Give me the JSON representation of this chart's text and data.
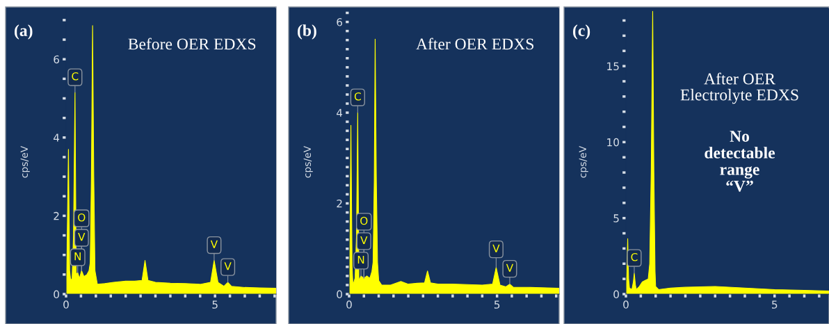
{
  "chart_data": [
    {
      "type": "area",
      "title": "(a)",
      "ylabel": "cps/eV",
      "x": [
        0,
        0.04,
        0.08,
        0.12,
        0.15,
        0.2,
        0.25,
        0.3,
        0.34,
        0.39,
        0.45,
        0.52,
        0.6,
        0.7,
        0.77,
        0.81,
        0.85,
        0.89,
        0.93,
        0.97,
        1.05,
        1.3,
        1.6,
        2.0,
        2.3,
        2.55,
        2.65,
        2.75,
        3.0,
        3.5,
        4.0,
        4.5,
        4.85,
        4.97,
        5.1,
        5.3,
        5.43,
        5.55,
        6.0,
        6.5,
        7.05
      ],
      "series": [
        {
          "color": "#ffff00",
          "values": [
            0,
            1.5,
            3.7,
            0.6,
            0.4,
            0.35,
            1.5,
            5.15,
            0.5,
            0.55,
            0.4,
            0.6,
            0.45,
            0.5,
            0.6,
            0.8,
            3.0,
            6.86,
            3.0,
            0.6,
            0.25,
            0.27,
            0.3,
            0.33,
            0.33,
            0.35,
            0.86,
            0.35,
            0.3,
            0.28,
            0.27,
            0.25,
            0.3,
            0.86,
            0.3,
            0.2,
            0.3,
            0.2,
            0.17,
            0.16,
            0.15
          ]
        }
      ],
      "xlim": [
        0,
        7.05
      ],
      "ylim": [
        0,
        7.3
      ],
      "xticks": [
        0,
        {
          "value": 0.5,
          "label": null
        },
        {
          "value": 1,
          "label": null
        },
        {
          "value": 1.5,
          "label": null
        },
        {
          "value": 2,
          "label": null
        },
        {
          "value": 2.5,
          "label": null
        },
        {
          "value": 3,
          "label": null
        },
        {
          "value": 3.5,
          "label": null
        },
        {
          "value": 4,
          "label": null
        },
        {
          "value": 4.5,
          "label": null
        },
        5,
        {
          "value": 5.5,
          "label": null
        },
        {
          "value": 6,
          "label": null
        },
        {
          "value": 6.5,
          "label": null
        },
        {
          "value": 7,
          "label": null
        }
      ],
      "yticks": [
        0,
        {
          "value": 0.5,
          "label": null
        },
        {
          "value": 1,
          "label": null
        },
        {
          "value": 1.5,
          "label": null
        },
        2,
        {
          "value": 2.5,
          "label": null
        },
        {
          "value": 3,
          "label": null
        },
        {
          "value": 3.5,
          "label": null
        },
        4,
        {
          "value": 4.5,
          "label": null
        },
        {
          "value": 5,
          "label": null
        },
        {
          "value": 5.5,
          "label": null
        },
        6,
        {
          "value": 6.5,
          "label": null
        },
        {
          "value": 7,
          "label": null
        }
      ],
      "annotations": [
        "Before OER EDXS",
        {
          "text": "C",
          "x": 0.3,
          "y": 5.15
        },
        {
          "text": "O",
          "x": 0.52,
          "y": 0.6
        },
        {
          "text": "V",
          "x": 0.52,
          "y": 0.6
        },
        {
          "text": "N",
          "x": 0.39,
          "y": 0.55
        },
        {
          "text": "V",
          "x": 4.97,
          "y": 0.86
        },
        {
          "text": "V",
          "x": 5.43,
          "y": 0.3
        }
      ]
    },
    {
      "type": "area",
      "title": "(b)",
      "ylabel": "cps/eV",
      "x": [
        0,
        0.03,
        0.06,
        0.1,
        0.13,
        0.2,
        0.25,
        0.29,
        0.33,
        0.4,
        0.5,
        0.6,
        0.7,
        0.77,
        0.81,
        0.85,
        0.88,
        0.92,
        0.96,
        1.0,
        1.1,
        1.4,
        1.75,
        2.0,
        2.3,
        2.55,
        2.65,
        2.75,
        3.0,
        3.5,
        4.0,
        4.5,
        4.85,
        4.97,
        5.1,
        5.3,
        5.43,
        5.55,
        6.0,
        6.5,
        7.1
      ],
      "series": [
        {
          "color": "#ffff00",
          "values": [
            0,
            1.5,
            3.72,
            0.6,
            0.2,
            0.35,
            1.3,
            4.0,
            0.3,
            0.4,
            0.35,
            0.4,
            0.35,
            0.5,
            0.7,
            2.5,
            5.62,
            2.5,
            0.7,
            0.3,
            0.2,
            0.2,
            0.28,
            0.22,
            0.24,
            0.25,
            0.51,
            0.25,
            0.22,
            0.22,
            0.21,
            0.2,
            0.22,
            0.59,
            0.2,
            0.16,
            0.22,
            0.15,
            0.15,
            0.14,
            0.13
          ]
        }
      ],
      "xlim": [
        0,
        7.1
      ],
      "ylim": [
        0,
        6.3
      ],
      "xticks": [
        0,
        {
          "value": 0.5,
          "label": null
        },
        {
          "value": 1,
          "label": null
        },
        {
          "value": 1.5,
          "label": null
        },
        {
          "value": 2,
          "label": null
        },
        {
          "value": 2.5,
          "label": null
        },
        {
          "value": 3,
          "label": null
        },
        {
          "value": 3.5,
          "label": null
        },
        {
          "value": 4,
          "label": null
        },
        {
          "value": 4.5,
          "label": null
        },
        5,
        {
          "value": 5.5,
          "label": null
        },
        {
          "value": 6,
          "label": null
        },
        {
          "value": 6.5,
          "label": null
        },
        {
          "value": 7,
          "label": null
        }
      ],
      "yticks": [
        0,
        {
          "value": 0.2,
          "label": null
        },
        {
          "value": 0.4,
          "label": null
        },
        {
          "value": 0.6,
          "label": null
        },
        {
          "value": 0.8,
          "label": null
        },
        {
          "value": 1,
          "label": null
        },
        {
          "value": 1.2,
          "label": null
        },
        {
          "value": 1.4,
          "label": null
        },
        {
          "value": 1.6,
          "label": null
        },
        {
          "value": 1.8,
          "label": null
        },
        2,
        {
          "value": 2.2,
          "label": null
        },
        {
          "value": 2.4,
          "label": null
        },
        {
          "value": 2.6,
          "label": null
        },
        {
          "value": 2.8,
          "label": null
        },
        {
          "value": 3,
          "label": null
        },
        {
          "value": 3.2,
          "label": null
        },
        {
          "value": 3.4,
          "label": null
        },
        {
          "value": 3.6,
          "label": null
        },
        {
          "value": 3.8,
          "label": null
        },
        4,
        {
          "value": 4.2,
          "label": null
        },
        {
          "value": 4.4,
          "label": null
        },
        {
          "value": 4.6,
          "label": null
        },
        {
          "value": 4.8,
          "label": null
        },
        {
          "value": 5,
          "label": null
        },
        {
          "value": 5.2,
          "label": null
        },
        {
          "value": 5.4,
          "label": null
        },
        {
          "value": 5.6,
          "label": null
        },
        {
          "value": 5.8,
          "label": null
        },
        6,
        {
          "value": 6.2,
          "label": null
        }
      ],
      "annotations": [
        "After OER EDXS",
        {
          "text": "C",
          "x": 0.29,
          "y": 4.0
        },
        {
          "text": "O",
          "x": 0.5,
          "y": 0.35
        },
        {
          "text": "V",
          "x": 0.5,
          "y": 0.35
        },
        {
          "text": "N",
          "x": 0.4,
          "y": 0.4
        },
        {
          "text": "V",
          "x": 4.97,
          "y": 0.59
        },
        {
          "text": "V",
          "x": 5.43,
          "y": 0.22
        }
      ]
    },
    {
      "type": "area",
      "title": "(c)",
      "ylabel": "cps/eV",
      "x": [
        0,
        0.03,
        0.06,
        0.09,
        0.12,
        0.2,
        0.25,
        0.28,
        0.32,
        0.35,
        0.45,
        0.55,
        0.65,
        0.75,
        0.8,
        0.85,
        0.9,
        0.94,
        0.98,
        1.0,
        1.1,
        1.5,
        2.0,
        3.0,
        4.0,
        5.0,
        6.0,
        6.83
      ],
      "series": [
        {
          "color": "#ffff00",
          "values": [
            0,
            1.5,
            3.65,
            1.0,
            0.4,
            0.3,
            0.8,
            1.37,
            0.6,
            0.3,
            0.5,
            0.8,
            0.9,
            1.0,
            2.0,
            8.0,
            18.6,
            8.0,
            1.5,
            0.5,
            0.3,
            0.4,
            0.45,
            0.5,
            0.4,
            0.3,
            0.25,
            0.2
          ]
        }
      ],
      "xlim": [
        0,
        6.83
      ],
      "ylim": [
        0,
        18.8
      ],
      "xticks": [
        0,
        {
          "value": 0.5,
          "label": null
        },
        {
          "value": 1,
          "label": null
        },
        {
          "value": 1.5,
          "label": null
        },
        {
          "value": 2,
          "label": null
        },
        {
          "value": 2.5,
          "label": null
        },
        {
          "value": 3,
          "label": null
        },
        {
          "value": 3.5,
          "label": null
        },
        {
          "value": 4,
          "label": null
        },
        {
          "value": 4.5,
          "label": null
        },
        5,
        {
          "value": 5.5,
          "label": null
        },
        {
          "value": 6,
          "label": null
        },
        {
          "value": 6.5,
          "label": null
        }
      ],
      "yticks": [
        0,
        {
          "value": 1,
          "label": null
        },
        {
          "value": 2,
          "label": null
        },
        {
          "value": 3,
          "label": null
        },
        {
          "value": 4,
          "label": null
        },
        5,
        {
          "value": 6,
          "label": null
        },
        {
          "value": 7,
          "label": null
        },
        {
          "value": 8,
          "label": null
        },
        {
          "value": 9,
          "label": null
        },
        10,
        {
          "value": 11,
          "label": null
        },
        {
          "value": 12,
          "label": null
        },
        {
          "value": 13,
          "label": null
        },
        {
          "value": 14,
          "label": null
        },
        15,
        {
          "value": 16,
          "label": null
        },
        {
          "value": 17,
          "label": null
        },
        {
          "value": 18,
          "label": null
        }
      ],
      "annotations": [
        "After OER\nElectrolyte EDXS",
        "No\ndetectable\nrange\n“V”",
        {
          "text": "C",
          "x": 0.28,
          "y": 1.37
        }
      ]
    }
  ]
}
